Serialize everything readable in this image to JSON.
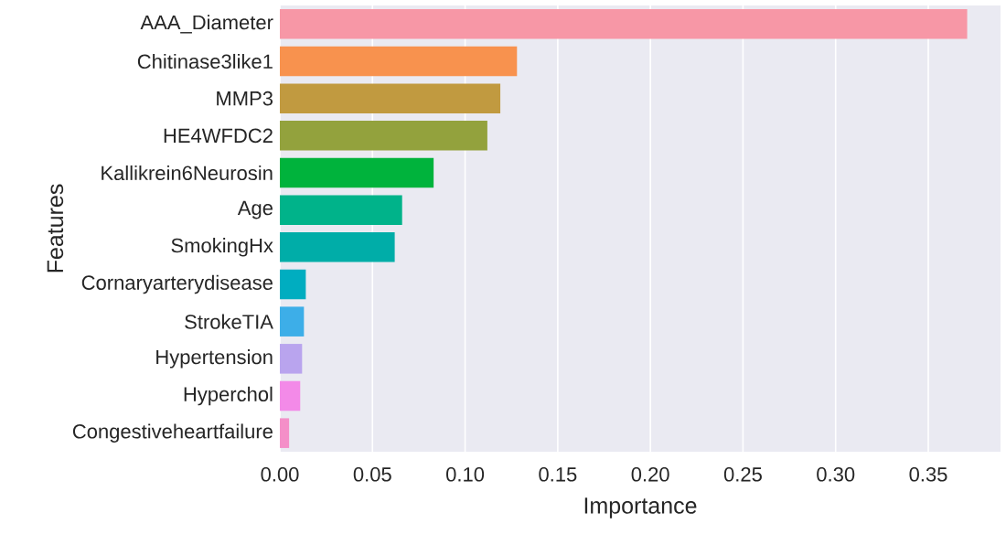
{
  "chart_data": {
    "type": "bar",
    "orientation": "horizontal",
    "xlabel": "Importance",
    "ylabel": "Features",
    "categories": [
      "AAA_Diameter",
      "Chitinase3like1",
      "MMP3",
      "HE4WFDC2",
      "Kallikrein6Neurosin",
      "Age",
      "SmokingHx",
      "Cornaryarterydisease",
      "StrokeTIA",
      "Hypertension",
      "Hyperchol",
      "Congestiveheartfailure"
    ],
    "values": [
      0.371,
      0.128,
      0.119,
      0.112,
      0.083,
      0.066,
      0.062,
      0.014,
      0.013,
      0.012,
      0.011,
      0.005
    ],
    "colors": [
      "#f797a6",
      "#f8924e",
      "#c19a40",
      "#93a23d",
      "#00b33c",
      "#00b38a",
      "#00ada8",
      "#00adc0",
      "#3daee8",
      "#b9a4ee",
      "#f38ae8",
      "#f48fc8"
    ],
    "xlim": [
      0,
      0.389
    ],
    "xticks": [
      {
        "value": 0,
        "label": "0.00"
      },
      {
        "value": 0.05,
        "label": "0.05"
      },
      {
        "value": 0.1,
        "label": "0.10"
      },
      {
        "value": 0.15,
        "label": "0.15"
      },
      {
        "value": 0.2,
        "label": "0.20"
      },
      {
        "value": 0.25,
        "label": "0.25"
      },
      {
        "value": 0.3,
        "label": "0.30"
      },
      {
        "value": 0.35,
        "label": "0.35"
      }
    ],
    "grid": "x"
  }
}
